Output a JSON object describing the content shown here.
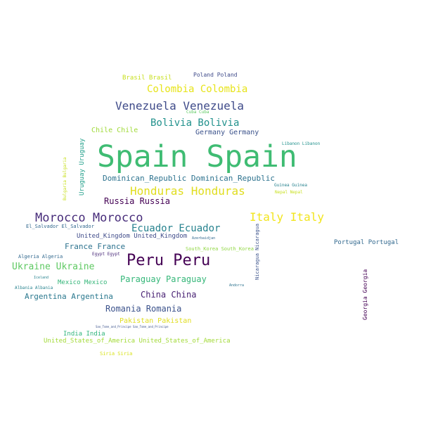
{
  "colors": {
    "background": "#ffffff",
    "palette": [
      "#440154",
      "#3b528b",
      "#21918c",
      "#2fb47c",
      "#5ec962",
      "#b5de2b",
      "#fde725"
    ]
  },
  "words": {
    "spain": "Spain Spain",
    "peru": "Peru Peru",
    "morocco": "Morocco Morocco",
    "honduras": "Honduras Honduras",
    "italy": "Italy Italy",
    "venezuela": "Venezuela Venezuela",
    "colombia": "Colombia Colombia",
    "bolivia": "Bolivia Bolivia",
    "ecuador": "Ecuador Ecuador",
    "ukraine": "Ukraine Ukraine",
    "russia": "Russia Russia",
    "paraguay": "Paraguay Paraguay",
    "china": "China China",
    "romania": "Romania Romania",
    "argentina": "Argentina Argentina",
    "france": "France France",
    "dominican_republic": "Dominican_Republic Dominican_Republic",
    "germany": "Germany Germany",
    "chile": "Chile Chile",
    "pakistan": "Pakistan Pakistan",
    "mexico": "Mexico Mexico",
    "united_kingdom": "United_Kingdom United_Kingdom",
    "portugal": "Portugal Portugal",
    "usa": "United_States_of_America United_States_of_America",
    "india": "India India",
    "brasil": "Brasil Brasil",
    "poland": "Poland Poland",
    "south_korea": "South_Korea South_Korea",
    "el_salvador": "El_Salvador El_Salvador",
    "algeria": "Algeria Algeria",
    "albania": "Albania Albania",
    "siria": "Siria Siria",
    "uruguay": "Uruguay Uruguay",
    "nicaragua": "Nicaragua Nicaragua",
    "georgia": "Georgia Georgia",
    "bulgaria": "Bulgaria Bulgaria",
    "nepal": "Nepal Nepal",
    "guinea": "Guinea Guinea",
    "libanon": "Libanon Libanon",
    "cuba": "Cuba Cuba",
    "egypt": "Egypt Egypt",
    "azerbaidjan": "Azerbaidjan",
    "andorra": "Andorra",
    "iceland": "Iceland",
    "sao_tome": "Sao_Tome_and_Principe Sao_Tome_and_Principe"
  }
}
